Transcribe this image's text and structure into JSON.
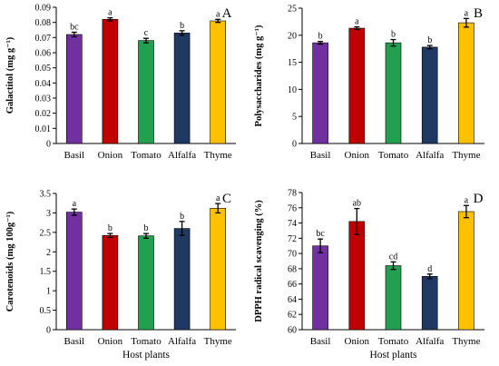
{
  "colors": {
    "Basil": "#7030a0",
    "Onion": "#c00000",
    "Tomato": "#22a050",
    "Alfalfa": "#1f3864",
    "Thyme": "#ffc000"
  },
  "chart_data": [
    {
      "type": "bar",
      "panel": "A",
      "categories": [
        "Basil",
        "Onion",
        "Tomato",
        "Alfalfa",
        "Thyme"
      ],
      "values": [
        0.072,
        0.082,
        0.068,
        0.073,
        0.081
      ],
      "errors": [
        0.0015,
        0.001,
        0.0015,
        0.0015,
        0.001
      ],
      "letters": [
        "bc",
        "a",
        "c",
        "b",
        "a"
      ],
      "ylabel": "Galactitol (mg g⁻¹)",
      "xlabel": "",
      "ylim": [
        0,
        0.09
      ],
      "ticks": [
        0,
        0.01,
        0.02,
        0.03,
        0.04,
        0.05,
        0.06,
        0.07,
        0.08,
        0.09
      ],
      "tick_labels": [
        "0",
        "0.01",
        "0.02",
        "0.03",
        "0.04",
        "0.05",
        "0.06",
        "0.07",
        "0.08",
        "0.09"
      ]
    },
    {
      "type": "bar",
      "panel": "B",
      "categories": [
        "Basil",
        "Onion",
        "Tomato",
        "Alfalfa",
        "Thyme"
      ],
      "values": [
        18.6,
        21.3,
        18.6,
        17.8,
        22.3
      ],
      "errors": [
        0.25,
        0.25,
        0.6,
        0.3,
        0.8
      ],
      "letters": [
        "b",
        "a",
        "b",
        "b",
        "a"
      ],
      "ylabel": "Polysaccharides (mg g⁻¹)",
      "xlabel": "",
      "ylim": [
        0,
        25
      ],
      "ticks": [
        0,
        5,
        10,
        15,
        20,
        25
      ],
      "tick_labels": [
        "0",
        "5",
        "10",
        "15",
        "20",
        "25"
      ]
    },
    {
      "type": "bar",
      "panel": "C",
      "categories": [
        "Basil",
        "Onion",
        "Tomato",
        "Alfalfa",
        "Thyme"
      ],
      "values": [
        3.02,
        2.42,
        2.41,
        2.6,
        3.12
      ],
      "errors": [
        0.08,
        0.05,
        0.06,
        0.18,
        0.12
      ],
      "letters": [
        "a",
        "b",
        "b",
        "b",
        "a"
      ],
      "ylabel": "Carotenoids (mg 100g⁻¹)",
      "xlabel": "Host plants",
      "ylim": [
        0,
        3.5
      ],
      "ticks": [
        0,
        0.5,
        1,
        1.5,
        2,
        2.5,
        3,
        3.5
      ],
      "tick_labels": [
        "0",
        "0.5",
        "1",
        "1.5",
        "2",
        "2.5",
        "3",
        "3.5"
      ]
    },
    {
      "type": "bar",
      "panel": "D",
      "categories": [
        "Basil",
        "Onion",
        "Tomato",
        "Alfalfa",
        "Thyme"
      ],
      "values": [
        71.0,
        74.2,
        68.4,
        67.0,
        75.5
      ],
      "errors": [
        0.9,
        1.7,
        0.5,
        0.3,
        0.8
      ],
      "letters": [
        "bc",
        "ab",
        "cd",
        "d",
        "a"
      ],
      "ylabel": "DPPH radical scavenging (%)",
      "xlabel": "Host plants",
      "ylim": [
        60,
        78
      ],
      "ticks": [
        60,
        62,
        64,
        66,
        68,
        70,
        72,
        74,
        76,
        78
      ],
      "tick_labels": [
        "60",
        "62",
        "64",
        "66",
        "68",
        "70",
        "72",
        "74",
        "76",
        "78"
      ]
    }
  ]
}
